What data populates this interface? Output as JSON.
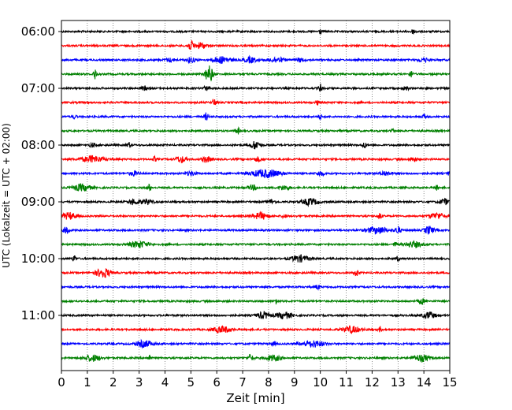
{
  "chart_data": {
    "type": "line",
    "title": "",
    "xlabel": "Zeit  [min]",
    "ylabel": "UTC (Lokalzeit = UTC + 02:00)",
    "xlim": [
      0,
      15
    ],
    "x_ticks": [
      "0",
      "1",
      "2",
      "3",
      "4",
      "5",
      "6",
      "7",
      "8",
      "9",
      "10",
      "11",
      "12",
      "13",
      "14",
      "15"
    ],
    "y_tick_labels": [
      "06:00",
      "07:00",
      "08:00",
      "09:00",
      "10:00",
      "11:00"
    ],
    "rows_per_hour": 4,
    "grid": "vertical-dotted",
    "series_colors": [
      "#000000",
      "#ff0000",
      "#0000ff",
      "#008000"
    ],
    "traces": [
      {
        "time": "06:00",
        "color": "#000000",
        "events": [
          {
            "t": 10.0,
            "amp": 0.35,
            "dur": 0.1
          },
          {
            "t": 13.6,
            "amp": 0.3,
            "dur": 0.15
          }
        ]
      },
      {
        "time": "06:15",
        "color": "#ff0000",
        "events": [
          {
            "t": 5.0,
            "amp": 0.6,
            "dur": 0.2
          },
          {
            "t": 5.4,
            "amp": 0.45,
            "dur": 0.25
          }
        ]
      },
      {
        "time": "06:30",
        "color": "#0000ff",
        "events": [
          {
            "t": 4.2,
            "amp": 0.25,
            "dur": 0.25
          },
          {
            "t": 5.0,
            "amp": 0.35,
            "dur": 0.25
          },
          {
            "t": 6.2,
            "amp": 0.45,
            "dur": 0.5
          },
          {
            "t": 7.3,
            "amp": 0.4,
            "dur": 0.3
          },
          {
            "t": 8.3,
            "amp": 0.35,
            "dur": 0.45
          },
          {
            "t": 9.2,
            "amp": 0.25,
            "dur": 0.25
          },
          {
            "t": 14.0,
            "amp": 0.25,
            "dur": 0.3
          }
        ]
      },
      {
        "time": "06:45",
        "color": "#008000",
        "events": [
          {
            "t": 1.3,
            "amp": 0.7,
            "dur": 0.1
          },
          {
            "t": 5.7,
            "amp": 1.2,
            "dur": 0.2
          },
          {
            "t": 13.5,
            "amp": 0.5,
            "dur": 0.1
          }
        ]
      },
      {
        "time": "07:00",
        "color": "#000000",
        "events": [
          {
            "t": 3.2,
            "amp": 0.3,
            "dur": 0.15
          },
          {
            "t": 5.6,
            "amp": 0.25,
            "dur": 0.2
          },
          {
            "t": 10.0,
            "amp": 0.55,
            "dur": 0.1
          },
          {
            "t": 13.3,
            "amp": 0.25,
            "dur": 0.15
          }
        ]
      },
      {
        "time": "07:15",
        "color": "#ff0000",
        "events": [
          {
            "t": 5.9,
            "amp": 0.5,
            "dur": 0.1
          },
          {
            "t": 9.9,
            "amp": 0.3,
            "dur": 0.1
          }
        ]
      },
      {
        "time": "07:30",
        "color": "#0000ff",
        "events": [
          {
            "t": 0.5,
            "amp": 0.3,
            "dur": 0.1
          },
          {
            "t": 5.6,
            "amp": 0.55,
            "dur": 0.1
          },
          {
            "t": 10.0,
            "amp": 0.3,
            "dur": 0.1
          },
          {
            "t": 14.0,
            "amp": 0.3,
            "dur": 0.1
          }
        ]
      },
      {
        "time": "07:45",
        "color": "#008000",
        "events": [
          {
            "t": 6.8,
            "amp": 0.55,
            "dur": 0.1
          },
          {
            "t": 12.8,
            "amp": 0.25,
            "dur": 0.1
          }
        ]
      },
      {
        "time": "08:00",
        "color": "#000000",
        "events": [
          {
            "t": 1.2,
            "amp": 0.3,
            "dur": 0.15
          },
          {
            "t": 2.6,
            "amp": 0.4,
            "dur": 0.1
          },
          {
            "t": 7.5,
            "amp": 0.6,
            "dur": 0.25
          },
          {
            "t": 11.7,
            "amp": 0.45,
            "dur": 0.1
          }
        ]
      },
      {
        "time": "08:15",
        "color": "#ff0000",
        "events": [
          {
            "t": 1.2,
            "amp": 0.45,
            "dur": 0.6
          },
          {
            "t": 3.6,
            "amp": 0.35,
            "dur": 0.1
          },
          {
            "t": 4.6,
            "amp": 0.45,
            "dur": 0.25
          },
          {
            "t": 5.6,
            "amp": 0.4,
            "dur": 0.25
          },
          {
            "t": 7.6,
            "amp": 0.3,
            "dur": 0.2
          },
          {
            "t": 13.6,
            "amp": 0.3,
            "dur": 0.2
          }
        ]
      },
      {
        "time": "08:30",
        "color": "#0000ff",
        "events": [
          {
            "t": 2.8,
            "amp": 0.3,
            "dur": 0.25
          },
          {
            "t": 5.0,
            "amp": 0.3,
            "dur": 0.25
          },
          {
            "t": 7.9,
            "amp": 0.55,
            "dur": 0.8
          },
          {
            "t": 10.0,
            "amp": 0.3,
            "dur": 0.2
          },
          {
            "t": 12.5,
            "amp": 0.3,
            "dur": 0.3
          },
          {
            "t": 15.0,
            "amp": 0.4,
            "dur": 0.1
          }
        ]
      },
      {
        "time": "08:45",
        "color": "#008000",
        "events": [
          {
            "t": 0.8,
            "amp": 0.45,
            "dur": 0.5
          },
          {
            "t": 3.4,
            "amp": 0.45,
            "dur": 0.1
          },
          {
            "t": 7.4,
            "amp": 0.3,
            "dur": 0.3
          },
          {
            "t": 8.6,
            "amp": 0.3,
            "dur": 0.3
          },
          {
            "t": 14.5,
            "amp": 0.3,
            "dur": 0.1
          }
        ]
      },
      {
        "time": "09:00",
        "color": "#000000",
        "events": [
          {
            "t": 2.8,
            "amp": 0.35,
            "dur": 0.3
          },
          {
            "t": 3.3,
            "amp": 0.35,
            "dur": 0.3
          },
          {
            "t": 8.1,
            "amp": 0.3,
            "dur": 0.2
          },
          {
            "t": 9.6,
            "amp": 0.45,
            "dur": 0.45
          },
          {
            "t": 14.8,
            "amp": 0.4,
            "dur": 0.25
          }
        ]
      },
      {
        "time": "09:15",
        "color": "#ff0000",
        "events": [
          {
            "t": 0.3,
            "amp": 0.45,
            "dur": 0.4
          },
          {
            "t": 7.7,
            "amp": 0.45,
            "dur": 0.4
          },
          {
            "t": 8.6,
            "amp": 0.3,
            "dur": 0.1
          },
          {
            "t": 12.3,
            "amp": 0.45,
            "dur": 0.1
          },
          {
            "t": 14.5,
            "amp": 0.4,
            "dur": 0.4
          }
        ]
      },
      {
        "time": "09:30",
        "color": "#0000ff",
        "events": [
          {
            "t": 0.2,
            "amp": 0.5,
            "dur": 0.15
          },
          {
            "t": 12.2,
            "amp": 0.45,
            "dur": 0.6
          },
          {
            "t": 13.0,
            "amp": 0.45,
            "dur": 0.15
          },
          {
            "t": 14.2,
            "amp": 0.55,
            "dur": 0.25
          }
        ]
      },
      {
        "time": "09:45",
        "color": "#008000",
        "events": [
          {
            "t": 3.0,
            "amp": 0.45,
            "dur": 0.5
          },
          {
            "t": 13.6,
            "amp": 0.4,
            "dur": 0.45
          },
          {
            "t": 12.9,
            "amp": 0.3,
            "dur": 0.1
          }
        ]
      },
      {
        "time": "10:00",
        "color": "#000000",
        "events": [
          {
            "t": 0.5,
            "amp": 0.45,
            "dur": 0.1
          },
          {
            "t": 9.2,
            "amp": 0.45,
            "dur": 0.45
          },
          {
            "t": 13.0,
            "amp": 0.3,
            "dur": 0.1
          }
        ]
      },
      {
        "time": "10:15",
        "color": "#ff0000",
        "events": [
          {
            "t": 1.5,
            "amp": 0.35,
            "dur": 0.4
          },
          {
            "t": 1.7,
            "amp": 0.4,
            "dur": 0.3
          },
          {
            "t": 11.4,
            "amp": 0.55,
            "dur": 0.1
          }
        ]
      },
      {
        "time": "10:30",
        "color": "#0000ff",
        "events": [
          {
            "t": 9.9,
            "amp": 0.35,
            "dur": 0.1
          }
        ]
      },
      {
        "time": "10:45",
        "color": "#008000",
        "events": [
          {
            "t": 8.3,
            "amp": 0.35,
            "dur": 0.1
          },
          {
            "t": 13.9,
            "amp": 0.45,
            "dur": 0.15
          }
        ]
      },
      {
        "time": "11:00",
        "color": "#000000",
        "events": [
          {
            "t": 7.8,
            "amp": 0.45,
            "dur": 0.35
          },
          {
            "t": 8.6,
            "amp": 0.45,
            "dur": 0.4
          },
          {
            "t": 14.2,
            "amp": 0.45,
            "dur": 0.35
          }
        ]
      },
      {
        "time": "11:15",
        "color": "#ff0000",
        "events": [
          {
            "t": 6.2,
            "amp": 0.45,
            "dur": 0.45
          },
          {
            "t": 11.2,
            "amp": 0.45,
            "dur": 0.5
          },
          {
            "t": 12.3,
            "amp": 0.3,
            "dur": 0.1
          }
        ]
      },
      {
        "time": "11:30",
        "color": "#0000ff",
        "events": [
          {
            "t": 3.2,
            "amp": 0.45,
            "dur": 0.45
          },
          {
            "t": 8.2,
            "amp": 0.3,
            "dur": 0.1
          },
          {
            "t": 9.7,
            "amp": 0.45,
            "dur": 0.6
          }
        ]
      },
      {
        "time": "11:45",
        "color": "#008000",
        "events": [
          {
            "t": 1.2,
            "amp": 0.45,
            "dur": 0.4
          },
          {
            "t": 3.4,
            "amp": 0.4,
            "dur": 0.1
          },
          {
            "t": 7.3,
            "amp": 0.45,
            "dur": 0.15
          },
          {
            "t": 8.2,
            "amp": 0.4,
            "dur": 0.4
          },
          {
            "t": 13.9,
            "amp": 0.45,
            "dur": 0.45
          }
        ]
      }
    ]
  }
}
